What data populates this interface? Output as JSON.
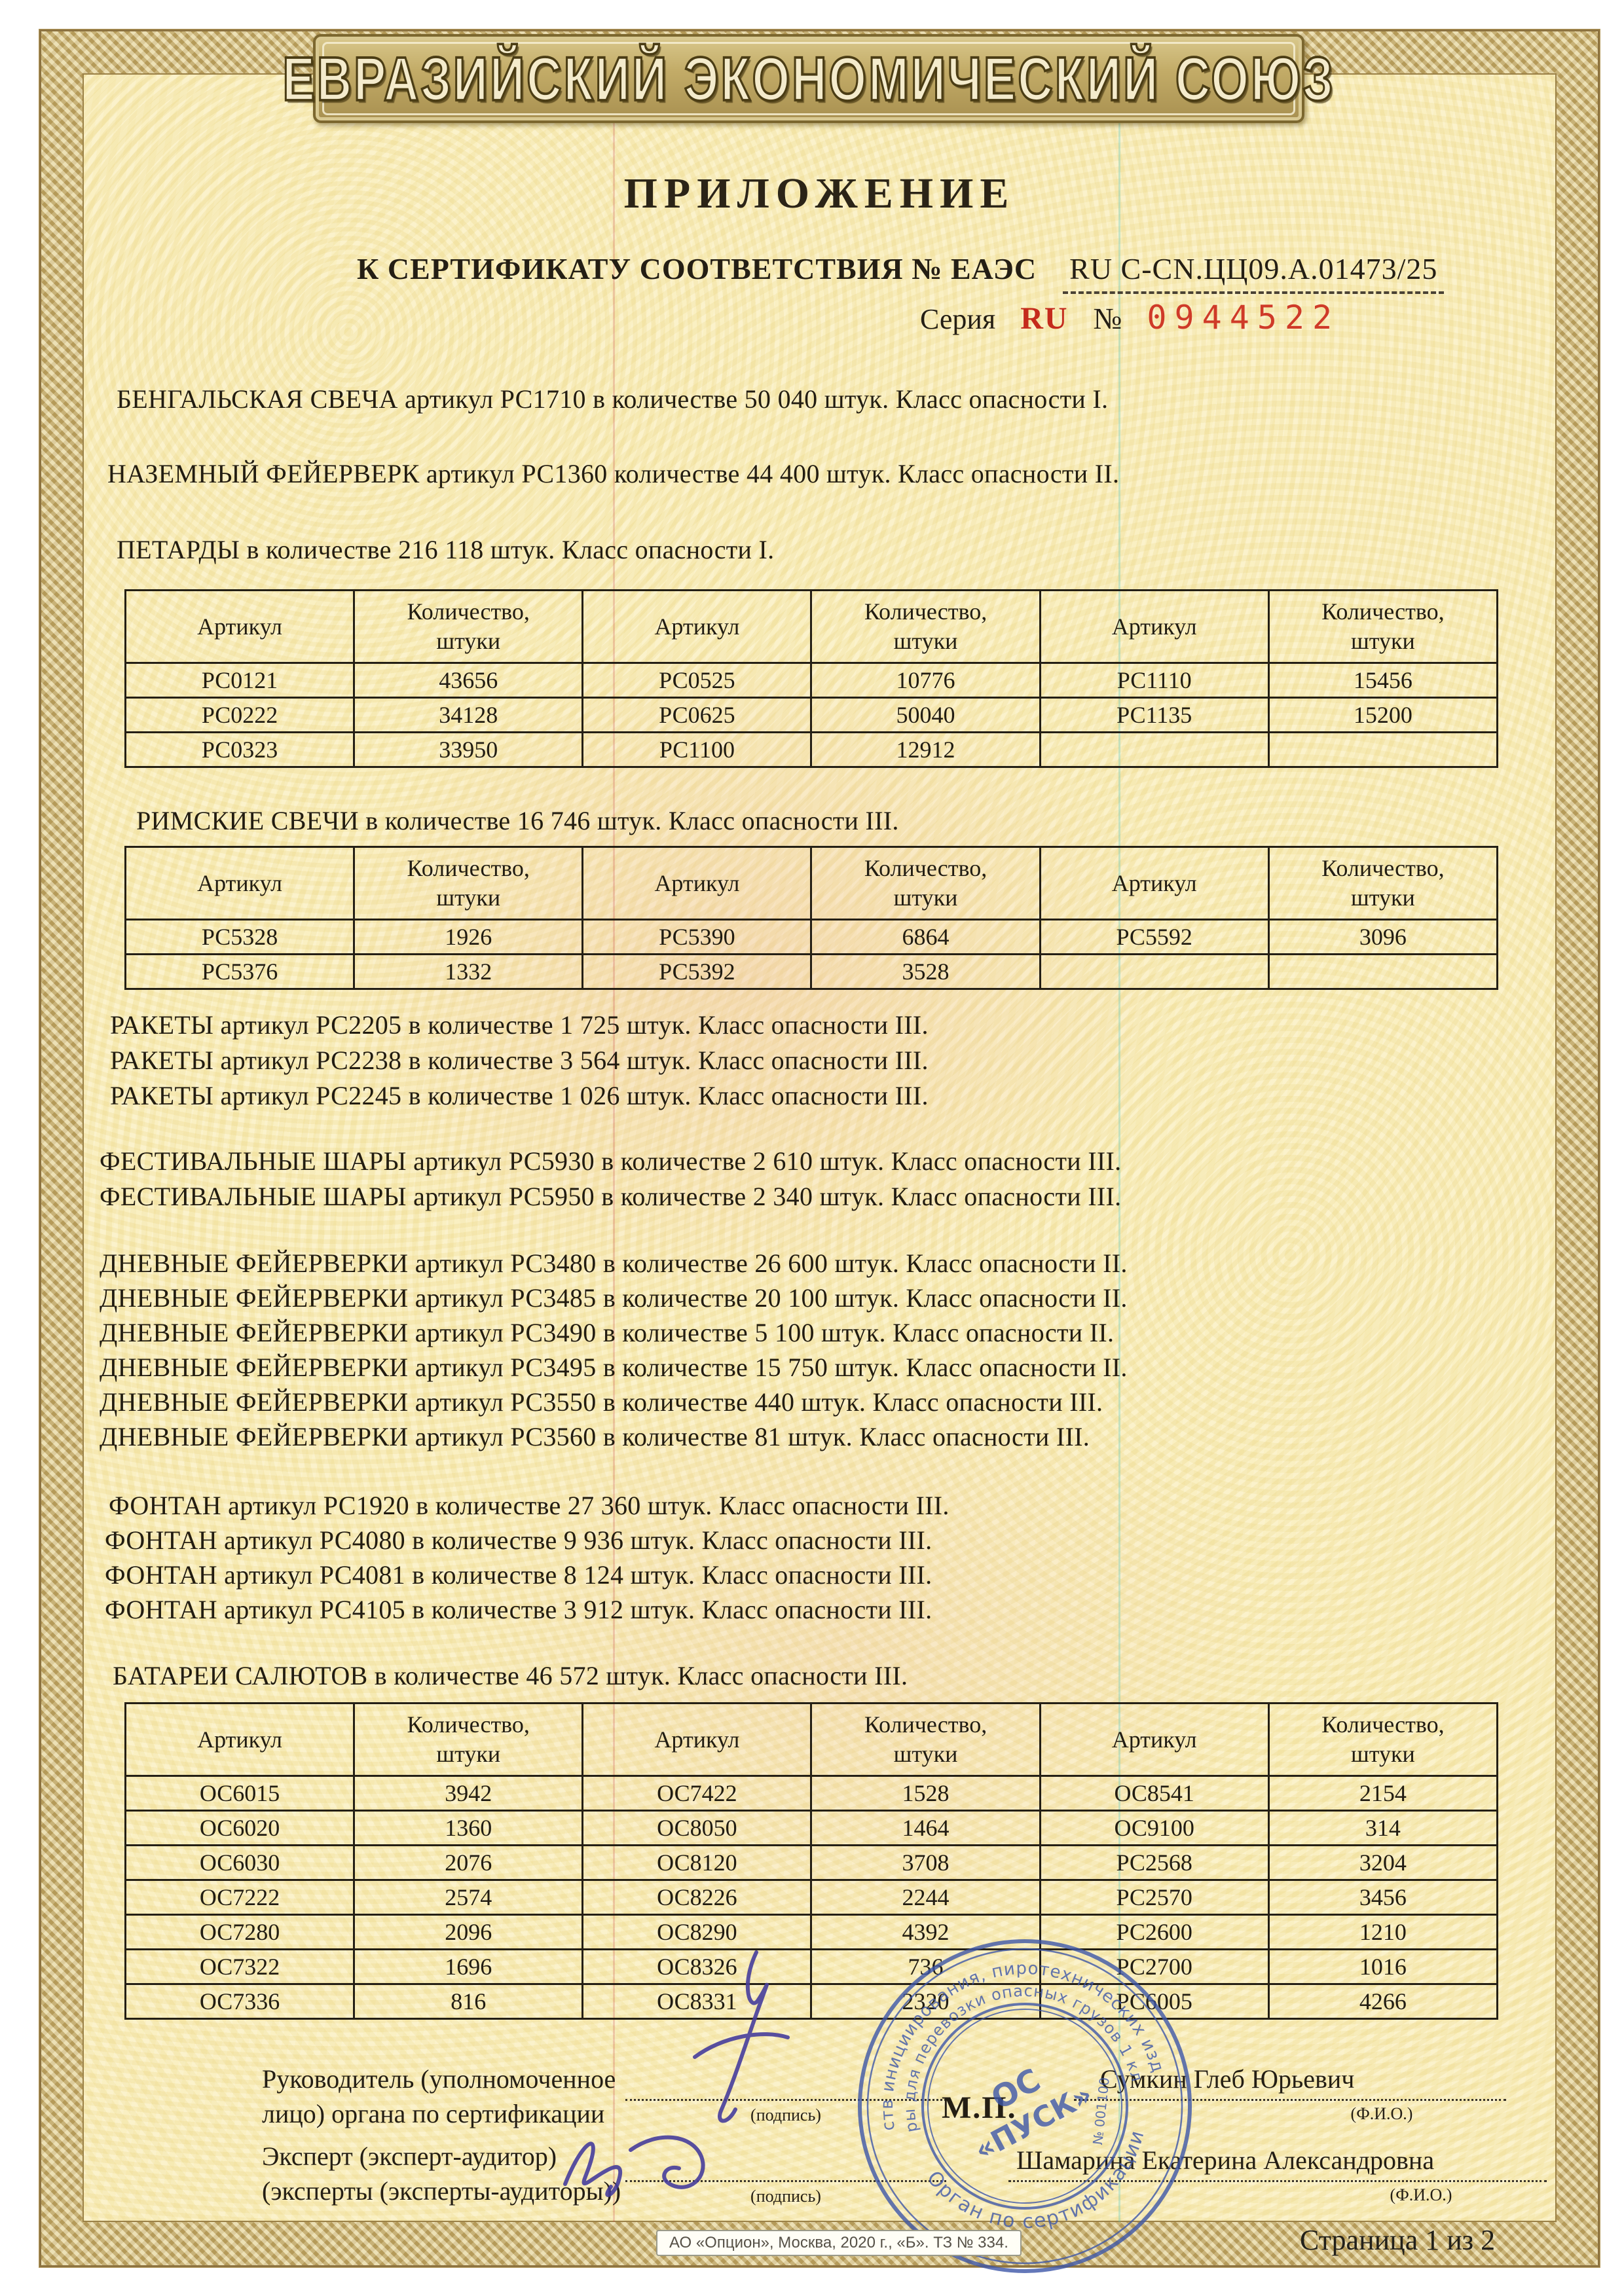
{
  "banner": {
    "title": "ЕВРАЗИЙСКИЙ ЭКОНОМИЧЕСКИЙ СОЮЗ"
  },
  "header": {
    "title": "ПРИЛОЖЕНИЕ",
    "subtitle_prefix": "К СЕРТИФИКАТУ СООТВЕТСТВИЯ № ЕАЭС",
    "certificate_number": "RU С-CN.ЦЦ09.А.01473/25",
    "series_label": "Серия",
    "series_value": "RU",
    "number_sign": "№",
    "blank_number": "0944522"
  },
  "table_headers": [
    "Артикул",
    "Количество,\nштуки",
    "Артикул",
    "Количество,\nштуки",
    "Артикул",
    "Количество,\nштуки"
  ],
  "sections": {
    "intro": [
      "БЕНГАЛЬСКАЯ СВЕЧА артикул РС1710 в количестве 50 040 штук. Класс опасности I.",
      "НАЗЕМНЫЙ ФЕЙЕРВЕРК артикул РС1360 количестве 44 400 штук. Класс опасности II."
    ],
    "petardy_heading": "ПЕТАРДЫ в количестве 216 118 штук. Класс опасности I.",
    "petardy_rows": [
      [
        "РС0121",
        "43656",
        "РС0525",
        "10776",
        "РС1110",
        "15456"
      ],
      [
        "РС0222",
        "34128",
        "РС0625",
        "50040",
        "РС1135",
        "15200"
      ],
      [
        "РС0323",
        "33950",
        "РС1100",
        "12912",
        "",
        ""
      ]
    ],
    "rimskie_heading": "РИМСКИЕ СВЕЧИ в количестве 16 746 штук. Класс опасности III.",
    "rimskie_rows": [
      [
        "РС5328",
        "1926",
        "РС5390",
        "6864",
        "РС5592",
        "3096"
      ],
      [
        "РС5376",
        "1332",
        "РС5392",
        "3528",
        "",
        ""
      ]
    ],
    "rockets": [
      "РАКЕТЫ артикул РС2205 в количестве 1 725 штук. Класс опасности III.",
      "РАКЕТЫ артикул РС2238 в количестве 3 564 штук. Класс опасности III.",
      "РАКЕТЫ артикул РС2245 в количестве 1 026 штук. Класс опасности III."
    ],
    "festival": [
      "ФЕСТИВАЛЬНЫЕ ШАРЫ артикул РС5930 в количестве 2 610 штук. Класс опасности III.",
      "ФЕСТИВАЛЬНЫЕ ШАРЫ артикул РС5950 в количестве 2 340 штук. Класс опасности III."
    ],
    "daytime": [
      "ДНЕВНЫЕ ФЕЙЕРВЕРКИ артикул РС3480 в количестве 26 600 штук. Класс опасности II.",
      "ДНЕВНЫЕ ФЕЙЕРВЕРКИ артикул РС3485 в количестве 20 100 штук. Класс опасности II.",
      "ДНЕВНЫЕ ФЕЙЕРВЕРКИ артикул РС3490 в количестве 5 100 штук. Класс опасности II.",
      "ДНЕВНЫЕ ФЕЙЕРВЕРКИ артикул РС3495 в количестве 15 750 штук. Класс опасности II.",
      "ДНЕВНЫЕ ФЕЙЕРВЕРКИ артикул РС3550 в количестве 440 штук. Класс опасности III.",
      "ДНЕВНЫЕ ФЕЙЕРВЕРКИ артикул РС3560 в количестве 81 штук. Класс опасности III."
    ],
    "fountain": [
      "ФОНТАН артикул РС1920 в количестве 27 360 штук. Класс опасности III.",
      "ФОНТАН артикул РС4080 в количестве 9 936 штук. Класс опасности III.",
      "ФОНТАН артикул РС4081 в количестве 8 124 штук. Класс опасности III.",
      "ФОНТАН артикул РС4105 в количестве 3 912 штук. Класс опасности III."
    ],
    "batteries_heading": "БАТАРЕИ САЛЮТОВ в количестве 46 572 штук. Класс опасности III.",
    "batteries_rows": [
      [
        "ОС6015",
        "3942",
        "ОС7422",
        "1528",
        "ОС8541",
        "2154"
      ],
      [
        "ОС6020",
        "1360",
        "ОС8050",
        "1464",
        "ОС9100",
        "314"
      ],
      [
        "ОС6030",
        "2076",
        "ОС8120",
        "3708",
        "РС2568",
        "3204"
      ],
      [
        "ОС7222",
        "2574",
        "ОС8226",
        "2244",
        "РС2570",
        "3456"
      ],
      [
        "ОС7280",
        "2096",
        "ОС8290",
        "4392",
        "РС2600",
        "1210"
      ],
      [
        "ОС7322",
        "1696",
        "ОС8326",
        "736",
        "РС2700",
        "1016"
      ],
      [
        "ОС7336",
        "816",
        "ОС8331",
        "2320",
        "РС6005",
        "4266"
      ]
    ]
  },
  "signature_block": {
    "role1": "Руководитель (уполномоченное\nлицо) органа по сертификации",
    "sign_caption": "(подпись)",
    "stamp_placeholder": "М.П.",
    "name1": "Сумкин Глеб Юрьевич",
    "fio_caption": "(Ф.И.О.)",
    "role2": "Эксперт (эксперт-аудитор)\n(эксперты (эксперты-аудиторы))",
    "name2": "Шамарина Екатерина Александровна"
  },
  "stamp": {
    "ring_outer": "средств инициирования, пиротехнических изделий",
    "ring_inner": "и тары для перевозки опасных грузов 1 класса",
    "ring_bottom": "Орган по сертификации",
    "center_line1": "ОС",
    "center_line2": "«ПУСК»",
    "number": "№ 001100"
  },
  "footer": {
    "imprint": "АО «Опцион», Москва, 2020 г., «Б». ТЗ № 334.",
    "page": "Страница 1 из 2"
  },
  "colors": {
    "accent_red": "#c42a1c",
    "stamp_blue": "#3e57a8",
    "border_gold": "#ccb572"
  }
}
